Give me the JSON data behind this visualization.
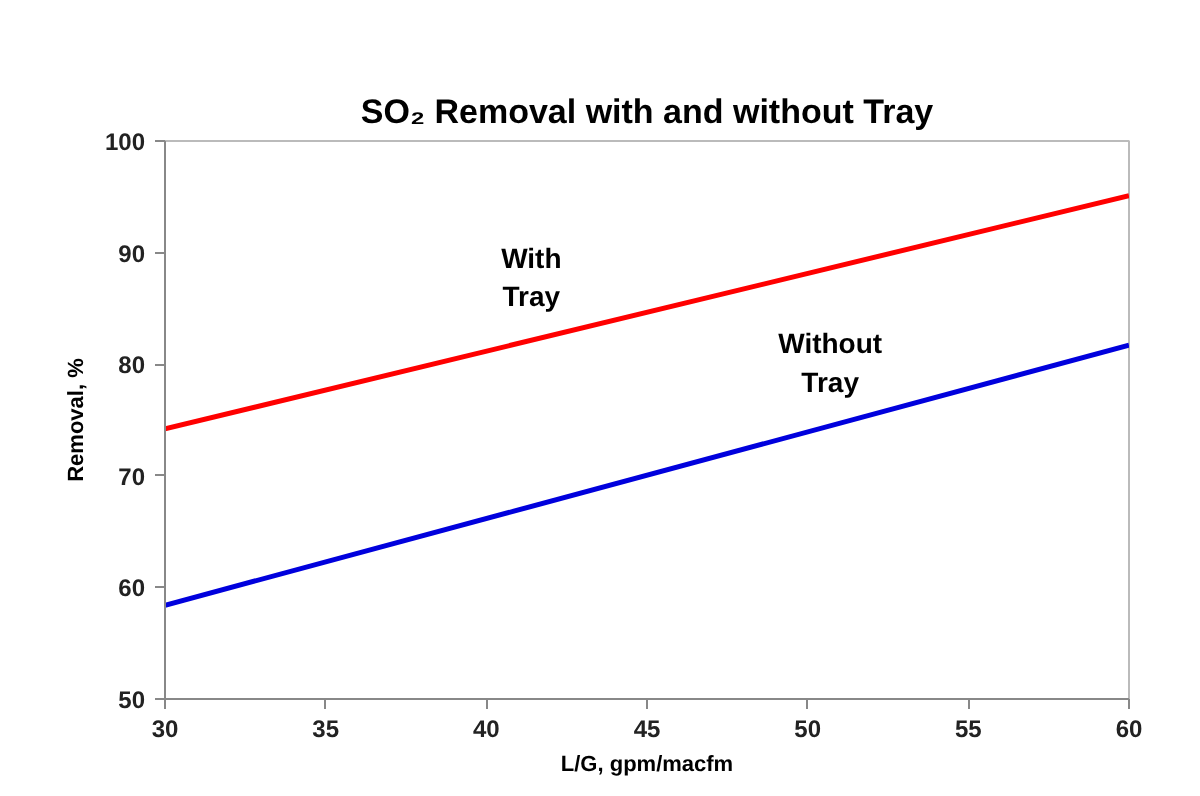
{
  "chart_data": {
    "type": "line",
    "title": "SO₂ Removal with and without Tray",
    "xlabel": "L/G, gpm/macfm",
    "ylabel": "Removal, %",
    "x": [
      30,
      60
    ],
    "series": [
      {
        "name": "With Tray",
        "color": "#ff0000",
        "values": [
          74.2,
          95.1
        ]
      },
      {
        "name": "Without Tray",
        "color": "#0000dd",
        "values": [
          58.4,
          81.7
        ]
      }
    ],
    "xlim": [
      30,
      60
    ],
    "xticks": [
      30,
      35,
      40,
      45,
      50,
      55,
      60
    ],
    "ylim": [
      50,
      100
    ],
    "yticks": [
      50,
      60,
      70,
      80,
      90,
      100
    ],
    "grid": false,
    "marker": "none",
    "line_style": "solid"
  }
}
